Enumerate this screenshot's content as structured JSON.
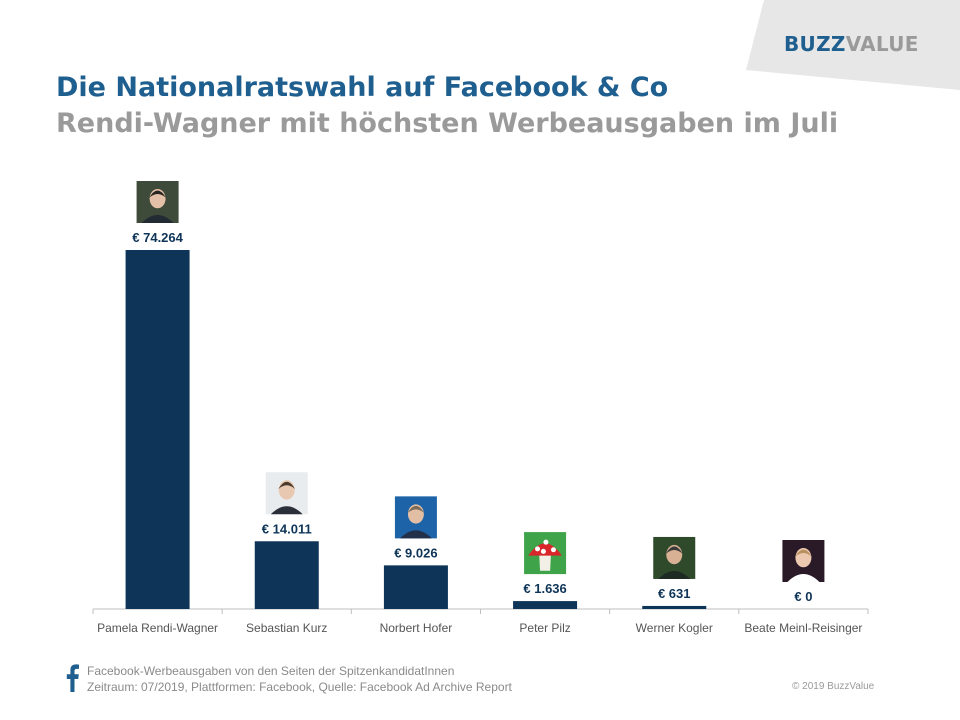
{
  "header": {
    "logo_part1": "BUZZ",
    "logo_part2": "VALUE",
    "title": "Die Nationalratswahl auf Facebook & Co",
    "subtitle": "Rendi-Wagner mit höchsten Werbeausgaben im Juli"
  },
  "chart_data": {
    "type": "bar",
    "title": "Die Nationalratswahl auf Facebook & Co",
    "subtitle": "Rendi-Wagner mit höchsten Werbeausgaben im Juli",
    "xlabel": "",
    "ylabel": "",
    "categories": [
      "Pamela Rendi-Wagner",
      "Sebastian Kurz",
      "Norbert Hofer",
      "Peter Pilz",
      "Werner Kogler",
      "Beate Meinl-Reisinger"
    ],
    "values": [
      74264,
      14011,
      9026,
      1636,
      631,
      0
    ],
    "data_labels": [
      "€ 74.264",
      "€ 14.011",
      "€ 9.026",
      "€ 1.636",
      "€ 631",
      "€ 0"
    ],
    "ylim": [
      0,
      74264
    ],
    "grid": false,
    "legend": "none",
    "colors": {
      "bar": "#0e3457",
      "label": "#0e3457",
      "axis": "#bfbfbf",
      "category": "#555555"
    },
    "avatars": [
      "portrait-photo",
      "portrait-photo",
      "portrait-photo",
      "mushroom-icon",
      "portrait-photo",
      "portrait-photo"
    ]
  },
  "footer": {
    "icon": "facebook-icon",
    "line1": "Facebook-Werbeausgaben  von den Seiten der SpitzenkandidatInnen",
    "line2": "Zeitraum: 07/2019, Plattformen: Facebook,  Quelle: Facebook  Ad Archive Report",
    "copyright": "© 2019 BuzzValue"
  },
  "colors": {
    "brand_blue": "#1f5f8f",
    "grey": "#9a9a9a",
    "corner": "#e6e6e6",
    "facebook": "#1f5f8f"
  }
}
